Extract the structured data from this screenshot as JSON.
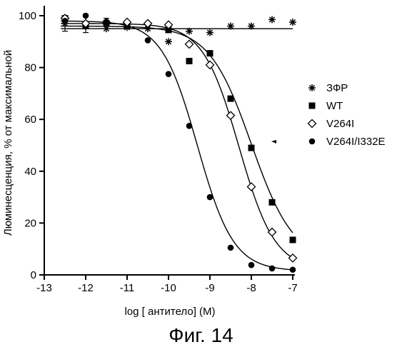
{
  "chart_data": {
    "type": "scatter",
    "title": "",
    "xlabel": "log [ антитело] (М)",
    "ylabel": "Люминесценция, % от максимальной",
    "xlim": [
      -13,
      -7
    ],
    "ylim": [
      0,
      100
    ],
    "xticks": [
      -13,
      -12,
      -11,
      -10,
      -9,
      -8,
      -7
    ],
    "xtick_labels": [
      "-13",
      "-12",
      "-11",
      "-10",
      "-9",
      "-8",
      "-7"
    ],
    "yticks": [
      0,
      20,
      40,
      60,
      80,
      100
    ],
    "ytick_labels": [
      "0",
      "20",
      "40",
      "60",
      "80",
      "100"
    ],
    "grid": false,
    "legend_position": "right",
    "series": [
      {
        "name": "ЗФР",
        "marker": "asterisk",
        "points": [
          [
            -12.5,
            97
          ],
          [
            -12.0,
            96
          ],
          [
            -11.5,
            95
          ],
          [
            -11.0,
            95.5
          ],
          [
            -10.5,
            95
          ],
          [
            -10.0,
            90
          ],
          [
            -9.5,
            94
          ],
          [
            -9.0,
            93.5
          ],
          [
            -8.5,
            96
          ],
          [
            -8.0,
            96
          ],
          [
            -7.5,
            98.5
          ],
          [
            -7.0,
            97.5
          ]
        ],
        "fit": {
          "top": 95,
          "bottom": 95,
          "logEC50": -9,
          "hill": 1
        }
      },
      {
        "name": "WT",
        "marker": "square",
        "points": [
          [
            -12.5,
            99
          ],
          [
            -12.0,
            96
          ],
          [
            -11.5,
            97
          ],
          [
            -11.0,
            96
          ],
          [
            -10.0,
            94.5
          ],
          [
            -9.5,
            82.5
          ],
          [
            -9.0,
            85.5
          ],
          [
            -8.5,
            68
          ],
          [
            -8.0,
            49
          ],
          [
            -7.5,
            28
          ],
          [
            -7.0,
            13.5
          ]
        ],
        "fit": {
          "top": 96,
          "bottom": 5,
          "logEC50": -8.0,
          "hill": 0.85
        }
      },
      {
        "name": "V264I",
        "marker": "diamond",
        "points": [
          [
            -12.5,
            99
          ],
          [
            -12.0,
            97
          ],
          [
            -11.5,
            97.5
          ],
          [
            -11.0,
            97.5
          ],
          [
            -10.5,
            97
          ],
          [
            -10.0,
            96.5
          ],
          [
            -9.5,
            89
          ],
          [
            -9.0,
            81
          ],
          [
            -8.5,
            61.5
          ],
          [
            -8.0,
            34
          ],
          [
            -7.5,
            16.5
          ],
          [
            -7.0,
            6.5
          ]
        ],
        "fit": {
          "top": 97,
          "bottom": 2,
          "logEC50": -8.3,
          "hill": 1.0
        }
      },
      {
        "name": "V264I/I332E",
        "marker": "circle",
        "points": [
          [
            -12.5,
            98
          ],
          [
            -12.0,
            100
          ],
          [
            -11.5,
            97.5
          ],
          [
            -10.5,
            90.5
          ],
          [
            -10.0,
            77.5
          ],
          [
            -9.5,
            57.5
          ],
          [
            -9.0,
            30
          ],
          [
            -8.5,
            10.5
          ],
          [
            -8.0,
            3.8
          ],
          [
            -7.5,
            2.5
          ],
          [
            -7.0,
            2
          ]
        ],
        "fit": {
          "top": 98,
          "bottom": 1.5,
          "logEC50": -9.3,
          "hill": 1.0
        }
      }
    ]
  },
  "caption": "Фиг. 14"
}
